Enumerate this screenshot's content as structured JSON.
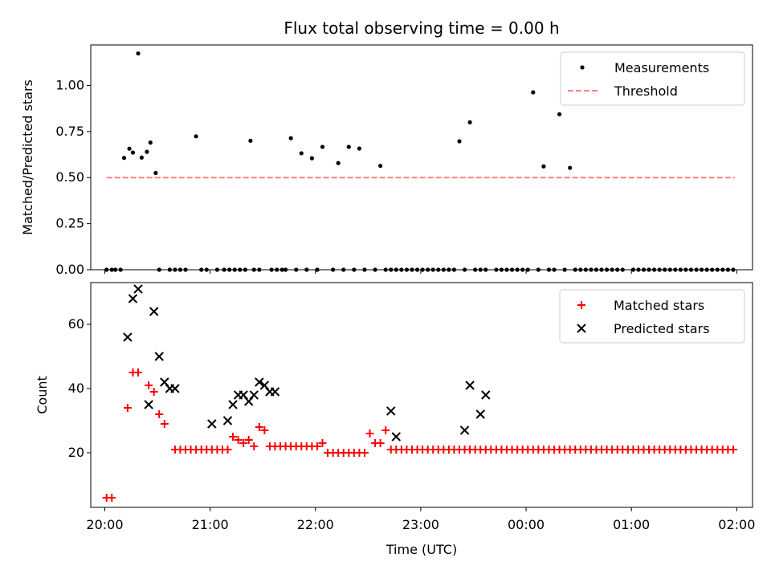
{
  "chart_data": [
    {
      "type": "scatter",
      "title": "Flux total observing time = 0.00 h",
      "ylabel": "Matched/Predicted stars",
      "xlabel": "",
      "ylim": [
        0,
        1.22
      ],
      "xlim": [
        "19:52",
        "02:09"
      ],
      "yticks": [
        "0.00",
        "0.25",
        "0.50",
        "0.75",
        "1.00"
      ],
      "xtick_labels_shown": false,
      "legend_position": "top-right",
      "grid": false,
      "series": [
        {
          "name": "Measurements",
          "marker": "dot",
          "color": "#000000",
          "x": [
            "20:01",
            "20:04",
            "20:06",
            "20:09",
            "20:11",
            "20:14",
            "20:16",
            "20:19",
            "20:21",
            "20:24",
            "20:26",
            "20:29",
            "20:31",
            "20:37",
            "20:40",
            "20:43",
            "20:46",
            "20:52",
            "20:55",
            "20:58",
            "21:04",
            "21:08",
            "21:11",
            "21:14",
            "21:17",
            "21:20",
            "21:23",
            "21:25",
            "21:28",
            "21:35",
            "21:38",
            "21:41",
            "21:43",
            "21:46",
            "21:49",
            "21:52",
            "21:55",
            "21:58",
            "22:01",
            "22:04",
            "22:10",
            "22:13",
            "22:16",
            "22:19",
            "22:22",
            "22:25",
            "22:28",
            "22:34",
            "22:37",
            "22:40",
            "22:43",
            "22:46",
            "22:49",
            "22:52",
            "22:55",
            "22:58",
            "23:01",
            "23:04",
            "23:07",
            "23:10",
            "23:13",
            "23:16",
            "23:19",
            "23:22",
            "23:25",
            "23:28",
            "23:31",
            "23:34",
            "23:37",
            "23:43",
            "23:46",
            "23:49",
            "23:52",
            "23:55",
            "23:58",
            "00:01",
            "00:04",
            "00:07",
            "00:10",
            "00:13",
            "00:16",
            "00:19",
            "00:22",
            "00:25",
            "00:28",
            "00:31",
            "00:34",
            "00:37",
            "00:40",
            "00:43",
            "00:46",
            "00:49",
            "00:52",
            "00:55",
            "01:01",
            "01:04",
            "01:07",
            "01:10",
            "01:13",
            "01:16",
            "01:19",
            "01:22",
            "01:25",
            "01:28",
            "01:31",
            "01:34",
            "01:37",
            "01:40",
            "01:43",
            "01:46",
            "01:49",
            "01:52",
            "01:55",
            "01:58"
          ],
          "y": [
            0,
            0,
            0,
            0,
            0.607,
            0.657,
            0.636,
            1.174,
            0.609,
            0.64,
            0.69,
            0.525,
            0,
            0,
            0,
            0,
            0,
            0.724,
            0,
            0,
            0,
            0,
            0,
            0,
            0,
            0,
            0.7,
            0,
            0,
            0,
            0,
            0,
            0,
            0.714,
            0,
            0.632,
            0,
            0.605,
            0,
            0.667,
            0,
            0.579,
            0,
            0.667,
            0,
            0.658,
            0,
            0,
            0.564,
            0,
            0,
            0,
            0,
            0,
            0,
            0,
            0,
            0,
            0,
            0,
            0,
            0,
            0,
            0.697,
            0,
            0.8,
            0,
            0,
            0,
            0,
            0,
            0,
            0,
            0,
            0,
            0,
            0.963,
            0,
            0.561,
            0,
            0,
            0.844,
            0,
            0.553,
            0,
            0,
            0,
            0,
            0,
            0,
            0,
            0,
            0,
            0,
            0,
            0,
            0,
            0,
            0,
            0,
            0,
            0,
            0,
            0,
            0,
            0,
            0,
            0,
            0,
            0,
            0,
            0,
            0,
            0
          ]
        },
        {
          "name": "Threshold",
          "marker": "dashed-line",
          "color": "#ff8080",
          "x": [
            "20:01",
            "01:59"
          ],
          "y": [
            0.5,
            0.5
          ]
        }
      ]
    },
    {
      "type": "scatter",
      "title": "",
      "ylabel": "Count",
      "xlabel": "Time (UTC)",
      "ylim": [
        3,
        73
      ],
      "xlim": [
        "19:52",
        "02:09"
      ],
      "yticks": [
        "20",
        "40",
        "60"
      ],
      "xticks": [
        "20:00",
        "21:00",
        "22:00",
        "23:00",
        "00:00",
        "01:00",
        "02:00"
      ],
      "legend_position": "top-right",
      "grid": false,
      "series": [
        {
          "name": "Matched stars",
          "marker": "plus",
          "color": "#ff0000",
          "x": [
            "20:01",
            "20:04",
            "20:13",
            "20:16",
            "20:19",
            "20:25",
            "20:28",
            "20:31",
            "20:34",
            "20:40",
            "20:43",
            "20:46",
            "20:49",
            "20:52",
            "20:55",
            "20:58",
            "21:01",
            "21:04",
            "21:07",
            "21:10",
            "21:13",
            "21:16",
            "21:19",
            "21:22",
            "21:25",
            "21:28",
            "21:31",
            "21:34",
            "21:37",
            "21:40",
            "21:43",
            "21:46",
            "21:49",
            "21:52",
            "21:55",
            "21:58",
            "22:01",
            "22:04",
            "22:07",
            "22:10",
            "22:13",
            "22:16",
            "22:19",
            "22:22",
            "22:25",
            "22:28",
            "22:31",
            "22:34",
            "22:37",
            "22:40",
            "22:43",
            "22:46",
            "22:49",
            "22:52",
            "22:55",
            "22:58",
            "23:01",
            "23:04",
            "23:07",
            "23:10",
            "23:13",
            "23:16",
            "23:19",
            "23:22",
            "23:25",
            "23:28",
            "23:31",
            "23:34",
            "23:37",
            "23:40",
            "23:43",
            "23:46",
            "23:49",
            "23:52",
            "23:55",
            "23:58",
            "00:01",
            "00:04",
            "00:07",
            "00:10",
            "00:13",
            "00:16",
            "00:19",
            "00:22",
            "00:25",
            "00:28",
            "00:31",
            "00:34",
            "00:37",
            "00:40",
            "00:43",
            "00:46",
            "00:49",
            "00:52",
            "00:55",
            "00:58",
            "01:01",
            "01:04",
            "01:07",
            "01:10",
            "01:13",
            "01:16",
            "01:19",
            "01:22",
            "01:25",
            "01:28",
            "01:31",
            "01:34",
            "01:37",
            "01:40",
            "01:43",
            "01:46",
            "01:49",
            "01:52",
            "01:55",
            "01:58"
          ],
          "y": [
            6,
            6,
            34,
            45,
            45,
            41,
            39,
            32,
            29,
            21,
            21,
            21,
            21,
            21,
            21,
            21,
            21,
            21,
            21,
            21,
            25,
            24,
            23,
            24,
            22,
            28,
            27,
            22,
            22,
            22,
            22,
            22,
            22,
            22,
            22,
            22,
            22,
            23,
            20,
            20,
            20,
            20,
            20,
            20,
            20,
            20,
            26,
            23,
            23,
            27,
            21,
            21,
            21,
            21,
            21,
            21,
            21,
            21,
            21,
            21,
            21,
            21,
            21,
            21,
            21,
            21,
            21,
            21,
            21,
            21,
            21,
            21,
            21,
            21,
            21,
            21,
            21,
            21,
            21,
            21,
            21,
            21,
            21,
            21,
            21,
            21,
            21,
            21,
            21,
            21,
            21,
            21,
            21,
            21,
            21,
            21,
            21,
            21,
            21,
            21,
            21,
            21,
            21,
            21,
            21,
            21,
            21,
            21,
            21,
            21,
            21,
            21,
            21,
            21,
            21,
            21
          ]
        },
        {
          "name": "Predicted stars",
          "marker": "x",
          "color": "#000000",
          "x": [
            "20:13",
            "20:16",
            "20:19",
            "20:25",
            "20:28",
            "20:31",
            "20:34",
            "20:37",
            "20:40",
            "21:01",
            "21:10",
            "21:13",
            "21:16",
            "21:19",
            "21:22",
            "21:25",
            "21:28",
            "21:31",
            "21:34",
            "21:37",
            "22:43",
            "22:46",
            "23:25",
            "23:28",
            "23:34",
            "23:37"
          ],
          "y": [
            56,
            68,
            71,
            35,
            64,
            50,
            42,
            40,
            40,
            29,
            30,
            35,
            38,
            38,
            36,
            38,
            42,
            41,
            39,
            39,
            33,
            25,
            27,
            41,
            32,
            38
          ]
        }
      ]
    }
  ]
}
